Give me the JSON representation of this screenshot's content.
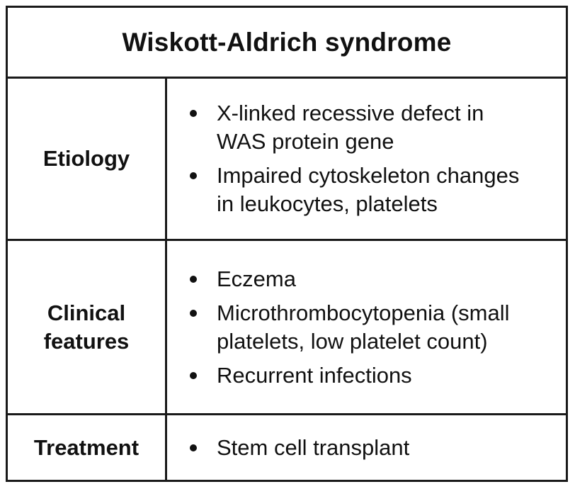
{
  "title": "Wiskott-Aldrich syndrome",
  "rows": [
    {
      "label_lines": [
        "Etiology"
      ],
      "items": [
        [
          "X-linked recessive defect in",
          "WAS protein gene"
        ],
        [
          "Impaired cytoskeleton changes",
          "in leukocytes, platelets"
        ]
      ]
    },
    {
      "label_lines": [
        "Clinical",
        "features"
      ],
      "items": [
        [
          "Eczema"
        ],
        [
          "Microthrombocytopenia (small",
          "platelets, low platelet count)"
        ],
        [
          "Recurrent infections"
        ]
      ]
    },
    {
      "label_lines": [
        "Treatment"
      ],
      "items": [
        [
          "Stem cell transplant"
        ]
      ]
    }
  ]
}
